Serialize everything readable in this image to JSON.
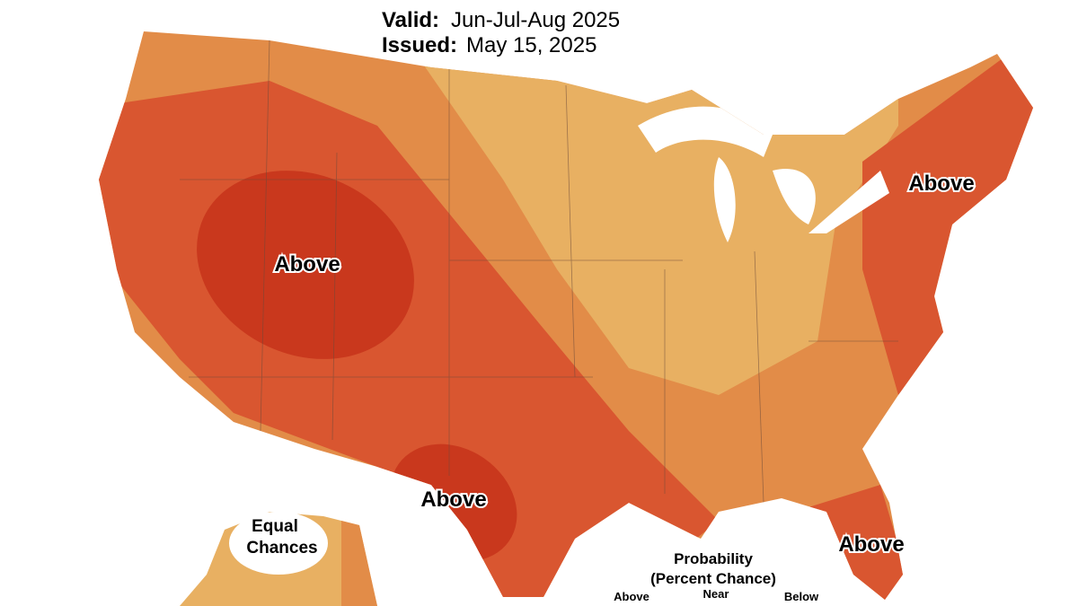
{
  "header": {
    "valid_label": "Valid:",
    "valid": "Jun-Jul-Aug 2025",
    "issued_label": "Issued:",
    "issued": "May 15, 2025"
  },
  "region_labels": [
    "Above",
    "Above",
    "Above",
    "Above"
  ],
  "alaska_label": [
    "Equal",
    "Chances"
  ],
  "legend": {
    "title": "Probability",
    "subtitle": "(Percent Chance)",
    "columns": [
      "Above",
      "Near",
      "Below"
    ]
  }
}
